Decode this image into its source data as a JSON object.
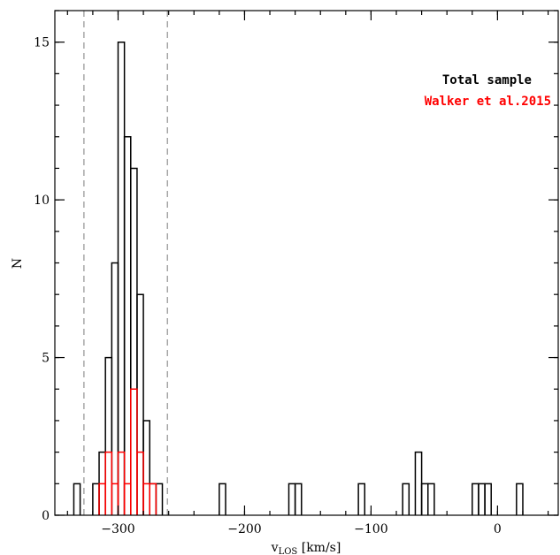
{
  "chart_data": {
    "type": "histogram",
    "xlabel_main": "v",
    "xlabel_sub": "LOS",
    "xlabel_unit": " [km/s]",
    "ylabel": "N",
    "xlim": [
      -350,
      48
    ],
    "ylim": [
      0,
      16
    ],
    "bin_width": 5,
    "x_major_ticks": [
      -300,
      -200,
      -100,
      0
    ],
    "x_tick_labels": [
      "−300",
      "−200",
      "−100",
      "0"
    ],
    "x_minor_step": 20,
    "y_major_ticks": [
      0,
      5,
      10,
      15
    ],
    "y_tick_labels": [
      "0",
      "5",
      "10",
      "15"
    ],
    "y_minor_step": 1,
    "vlines": [
      -327,
      -261
    ],
    "vline_color": "#999999",
    "legend": {
      "placement": "top-right",
      "entries": [
        {
          "label": "Total sample",
          "color": "#000000"
        },
        {
          "label": "Walker et al.2015",
          "color": "#ff0000"
        }
      ]
    },
    "series": [
      {
        "name": "Total sample",
        "color": "#000000",
        "bins": [
          [
            -335,
            1
          ],
          [
            -320,
            1
          ],
          [
            -315,
            2
          ],
          [
            -310,
            5
          ],
          [
            -305,
            8
          ],
          [
            -300,
            15
          ],
          [
            -295,
            12
          ],
          [
            -290,
            11
          ],
          [
            -285,
            7
          ],
          [
            -280,
            3
          ],
          [
            -275,
            1
          ],
          [
            -270,
            1
          ],
          [
            -220,
            1
          ],
          [
            -165,
            1
          ],
          [
            -160,
            1
          ],
          [
            -110,
            1
          ],
          [
            -75,
            1
          ],
          [
            -65,
            2
          ],
          [
            -60,
            1
          ],
          [
            -55,
            1
          ],
          [
            -20,
            1
          ],
          [
            -15,
            1
          ],
          [
            -10,
            1
          ],
          [
            15,
            1
          ]
        ]
      },
      {
        "name": "Walker et al.2015",
        "color": "#ff0000",
        "bins": [
          [
            -315,
            1
          ],
          [
            -310,
            2
          ],
          [
            -305,
            1
          ],
          [
            -300,
            2
          ],
          [
            -295,
            1
          ],
          [
            -290,
            4
          ],
          [
            -285,
            2
          ],
          [
            -280,
            1
          ],
          [
            -275,
            1
          ]
        ]
      }
    ]
  }
}
